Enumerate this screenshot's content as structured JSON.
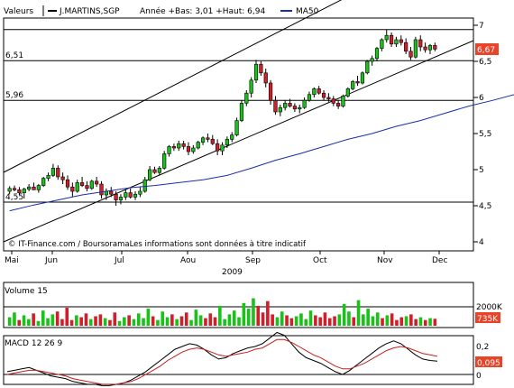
{
  "header": {
    "valeurs_label": "Valeurs",
    "instrument": "J.MARTINS,SGP",
    "range_text": "Année +Bas: 3,01 +Haut: 6,94",
    "ma_legend": "MA50"
  },
  "watermark": "© IT-Finance.com / BoursoramaLes informations sont données à titre indicatif",
  "colors": {
    "up": "#19c119",
    "down": "#d01f2a",
    "ma": "#1a2ea8",
    "price_box": "#e8442a",
    "volume_box": "#e8442a",
    "macd_box": "#e8442a",
    "signal": "#c81e1e"
  },
  "chart_data": [
    {
      "type": "candlestick",
      "title": "",
      "x_labels": [
        "Mai",
        "Jun",
        "Jul",
        "Aou",
        "Sep",
        "Oct",
        "Nov",
        "Dec"
      ],
      "x_year": "2009",
      "y_ticks": [
        "7",
        "6,5",
        "6",
        "5,5",
        "5",
        "4,5",
        "4"
      ],
      "ylim": [
        4.0,
        7.0
      ],
      "horizontal_levels": [
        {
          "value": 6.94,
          "label": ""
        },
        {
          "value": 6.51,
          "label": "6,51"
        },
        {
          "value": 5.96,
          "label": "5,96"
        },
        {
          "value": 4.55,
          "label": ""
        }
      ],
      "left_level_labels": [
        "6,51",
        "5,96",
        "4,55"
      ],
      "last_price_label": "6,67",
      "ma50": [
        [
          0,
          4.43
        ],
        [
          5,
          4.51
        ],
        [
          10,
          4.58
        ],
        [
          15,
          4.65
        ],
        [
          20,
          4.7
        ],
        [
          25,
          4.75
        ],
        [
          30,
          4.78
        ],
        [
          35,
          4.82
        ],
        [
          40,
          4.86
        ],
        [
          45,
          4.92
        ],
        [
          50,
          5.02
        ],
        [
          55,
          5.13
        ],
        [
          60,
          5.22
        ],
        [
          65,
          5.32
        ],
        [
          70,
          5.42
        ],
        [
          75,
          5.5
        ],
        [
          80,
          5.6
        ],
        [
          85,
          5.68
        ],
        [
          90,
          5.78
        ],
        [
          95,
          5.88
        ],
        [
          100,
          5.96
        ],
        [
          105,
          6.05
        ],
        [
          110,
          6.13
        ],
        [
          115,
          6.22
        ],
        [
          120,
          6.3
        ],
        [
          124,
          6.36
        ]
      ],
      "ohlc": [
        [
          4.7,
          4.77,
          4.66,
          4.74
        ],
        [
          4.74,
          4.78,
          4.7,
          4.72
        ],
        [
          4.72,
          4.76,
          4.65,
          4.68
        ],
        [
          4.68,
          4.75,
          4.6,
          4.73
        ],
        [
          4.73,
          4.8,
          4.7,
          4.76
        ],
        [
          4.76,
          4.82,
          4.72,
          4.72
        ],
        [
          4.72,
          4.8,
          4.68,
          4.78
        ],
        [
          4.78,
          4.9,
          4.76,
          4.88
        ],
        [
          4.88,
          4.96,
          4.84,
          4.92
        ],
        [
          4.92,
          5.08,
          4.9,
          5.02
        ],
        [
          5.02,
          5.06,
          4.86,
          4.9
        ],
        [
          4.9,
          4.96,
          4.8,
          4.86
        ],
        [
          4.86,
          4.92,
          4.72,
          4.76
        ],
        [
          4.76,
          4.82,
          4.62,
          4.7
        ],
        [
          4.7,
          4.86,
          4.68,
          4.82
        ],
        [
          4.82,
          4.9,
          4.76,
          4.78
        ],
        [
          4.78,
          4.84,
          4.7,
          4.74
        ],
        [
          4.74,
          4.86,
          4.72,
          4.84
        ],
        [
          4.84,
          4.9,
          4.76,
          4.8
        ],
        [
          4.8,
          4.84,
          4.6,
          4.65
        ],
        [
          4.65,
          4.74,
          4.58,
          4.7
        ],
        [
          4.7,
          4.76,
          4.62,
          4.66
        ],
        [
          4.66,
          4.7,
          4.5,
          4.58
        ],
        [
          4.58,
          4.66,
          4.52,
          4.62
        ],
        [
          4.62,
          4.72,
          4.58,
          4.68
        ],
        [
          4.68,
          4.74,
          4.6,
          4.62
        ],
        [
          4.62,
          4.7,
          4.58,
          4.66
        ],
        [
          4.66,
          4.76,
          4.62,
          4.7
        ],
        [
          4.7,
          4.9,
          4.68,
          4.86
        ],
        [
          4.86,
          5.05,
          4.84,
          5.0
        ],
        [
          5.0,
          5.04,
          4.94,
          4.96
        ],
        [
          4.96,
          5.05,
          4.92,
          5.02
        ],
        [
          5.02,
          5.26,
          5.0,
          5.22
        ],
        [
          5.22,
          5.34,
          5.18,
          5.32
        ],
        [
          5.32,
          5.36,
          5.26,
          5.3
        ],
        [
          5.3,
          5.4,
          5.26,
          5.36
        ],
        [
          5.36,
          5.4,
          5.28,
          5.32
        ],
        [
          5.32,
          5.38,
          5.2,
          5.25
        ],
        [
          5.25,
          5.34,
          5.22,
          5.3
        ],
        [
          5.3,
          5.4,
          5.28,
          5.38
        ],
        [
          5.38,
          5.46,
          5.34,
          5.44
        ],
        [
          5.44,
          5.5,
          5.38,
          5.42
        ],
        [
          5.42,
          5.48,
          5.34,
          5.36
        ],
        [
          5.36,
          5.42,
          5.2,
          5.26
        ],
        [
          5.26,
          5.38,
          5.2,
          5.34
        ],
        [
          5.34,
          5.46,
          5.3,
          5.42
        ],
        [
          5.42,
          5.52,
          5.38,
          5.48
        ],
        [
          5.48,
          5.72,
          5.46,
          5.68
        ],
        [
          5.68,
          5.96,
          5.66,
          5.92
        ],
        [
          5.92,
          6.1,
          5.88,
          6.06
        ],
        [
          6.06,
          6.28,
          6.0,
          6.24
        ],
        [
          6.24,
          6.52,
          6.2,
          6.46
        ],
        [
          6.46,
          6.5,
          6.3,
          6.34
        ],
        [
          6.34,
          6.4,
          6.14,
          6.2
        ],
        [
          6.2,
          6.24,
          5.9,
          5.96
        ],
        [
          5.96,
          6.02,
          5.76,
          5.8
        ],
        [
          5.8,
          5.9,
          5.74,
          5.86
        ],
        [
          5.86,
          5.96,
          5.82,
          5.92
        ],
        [
          5.92,
          5.98,
          5.86,
          5.88
        ],
        [
          5.88,
          5.92,
          5.8,
          5.84
        ],
        [
          5.84,
          5.9,
          5.78,
          5.86
        ],
        [
          5.86,
          6.0,
          5.84,
          5.96
        ],
        [
          5.96,
          6.08,
          5.94,
          6.04
        ],
        [
          6.04,
          6.14,
          6.0,
          6.12
        ],
        [
          6.12,
          6.16,
          6.04,
          6.06
        ],
        [
          6.06,
          6.1,
          5.96,
          6.0
        ],
        [
          6.0,
          6.06,
          5.94,
          5.98
        ],
        [
          5.98,
          6.02,
          5.88,
          5.92
        ],
        [
          5.92,
          5.96,
          5.84,
          5.88
        ],
        [
          5.88,
          6.04,
          5.86,
          6.02
        ],
        [
          6.02,
          6.14,
          6.0,
          6.12
        ],
        [
          6.12,
          6.24,
          6.1,
          6.22
        ],
        [
          6.22,
          6.3,
          6.16,
          6.2
        ],
        [
          6.2,
          6.36,
          6.18,
          6.34
        ],
        [
          6.34,
          6.52,
          6.32,
          6.5
        ],
        [
          6.5,
          6.58,
          6.44,
          6.54
        ],
        [
          6.54,
          6.7,
          6.5,
          6.68
        ],
        [
          6.68,
          6.82,
          6.64,
          6.8
        ],
        [
          6.8,
          6.94,
          6.76,
          6.86
        ],
        [
          6.86,
          6.9,
          6.7,
          6.74
        ],
        [
          6.74,
          6.84,
          6.7,
          6.8
        ],
        [
          6.8,
          6.86,
          6.72,
          6.76
        ],
        [
          6.76,
          6.82,
          6.6,
          6.64
        ],
        [
          6.64,
          6.7,
          6.52,
          6.56
        ],
        [
          6.56,
          6.84,
          6.54,
          6.8
        ],
        [
          6.8,
          6.86,
          6.64,
          6.7
        ],
        [
          6.7,
          6.76,
          6.62,
          6.66
        ],
        [
          6.66,
          6.74,
          6.6,
          6.72
        ],
        [
          6.72,
          6.76,
          6.64,
          6.67
        ]
      ]
    },
    {
      "type": "bar",
      "title": "Volume 15",
      "y_ticks": [
        "2000K"
      ],
      "last_value_label": "735K",
      "values": [
        900,
        1400,
        600,
        1100,
        700,
        1300,
        500,
        1600,
        800,
        1200,
        1500,
        700,
        1900,
        600,
        1100,
        900,
        1300,
        700,
        1000,
        1200,
        800,
        600,
        1400,
        500,
        900,
        1100,
        700,
        1300,
        800,
        1800,
        1000,
        600,
        1500,
        900,
        1200,
        700,
        1000,
        1400,
        600,
        1700,
        1100,
        800,
        1300,
        900,
        2100,
        700,
        1200,
        1600,
        900,
        2400,
        1800,
        2900,
        2100,
        1400,
        2600,
        1200,
        900,
        1500,
        1100,
        800,
        1000,
        1300,
        700,
        1600,
        1100,
        900,
        1400,
        800,
        1000,
        1200,
        2300,
        1500,
        900,
        2700,
        1200,
        1800,
        1000,
        1400,
        800,
        1100,
        1300,
        600,
        900,
        1000,
        1200,
        700,
        900,
        600,
        800,
        735
      ],
      "up_flags": [
        1,
        1,
        0,
        1,
        1,
        0,
        1,
        1,
        1,
        1,
        0,
        0,
        0,
        0,
        1,
        0,
        0,
        1,
        0,
        0,
        1,
        0,
        0,
        1,
        1,
        0,
        1,
        1,
        1,
        1,
        0,
        1,
        1,
        1,
        0,
        1,
        0,
        0,
        1,
        1,
        1,
        0,
        0,
        0,
        1,
        1,
        1,
        1,
        1,
        1,
        1,
        1,
        0,
        0,
        0,
        0,
        1,
        1,
        0,
        0,
        1,
        1,
        1,
        1,
        0,
        0,
        0,
        0,
        0,
        1,
        1,
        1,
        0,
        1,
        1,
        1,
        1,
        1,
        0,
        1,
        0,
        0,
        0,
        1,
        0,
        0,
        1,
        0,
        1,
        0
      ]
    },
    {
      "type": "line",
      "title": "MACD 12 26 9",
      "y_ticks": [
        "0,2",
        "0"
      ],
      "last_value_label": "0,095",
      "series": [
        {
          "values": [
            0.02,
            0.03,
            0.04,
            0.05,
            0.03,
            0.01,
            -0.01,
            -0.02,
            -0.03,
            -0.05,
            -0.06,
            -0.07,
            -0.07,
            -0.08,
            -0.08,
            -0.07,
            -0.06,
            -0.04,
            -0.01,
            0.02,
            0.06,
            0.1,
            0.14,
            0.18,
            0.2,
            0.22,
            0.21,
            0.18,
            0.14,
            0.11,
            0.12,
            0.15,
            0.17,
            0.19,
            0.2,
            0.22,
            0.26,
            0.3,
            0.28,
            0.22,
            0.16,
            0.12,
            0.1,
            0.08,
            0.05,
            0.02,
            0.0,
            0.03,
            0.07,
            0.11,
            0.15,
            0.19,
            0.22,
            0.24,
            0.22,
            0.18,
            0.14,
            0.11,
            0.1,
            0.095
          ]
        },
        {
          "values": [
            0.0,
            0.01,
            0.02,
            0.03,
            0.03,
            0.02,
            0.01,
            0.0,
            -0.01,
            -0.03,
            -0.04,
            -0.05,
            -0.06,
            -0.07,
            -0.07,
            -0.07,
            -0.06,
            -0.05,
            -0.03,
            0.0,
            0.03,
            0.06,
            0.1,
            0.13,
            0.16,
            0.18,
            0.19,
            0.18,
            0.16,
            0.14,
            0.13,
            0.14,
            0.15,
            0.16,
            0.18,
            0.19,
            0.22,
            0.25,
            0.25,
            0.23,
            0.2,
            0.17,
            0.14,
            0.12,
            0.09,
            0.06,
            0.04,
            0.04,
            0.06,
            0.08,
            0.11,
            0.14,
            0.17,
            0.19,
            0.2,
            0.19,
            0.17,
            0.15,
            0.14,
            0.13
          ]
        }
      ]
    }
  ]
}
